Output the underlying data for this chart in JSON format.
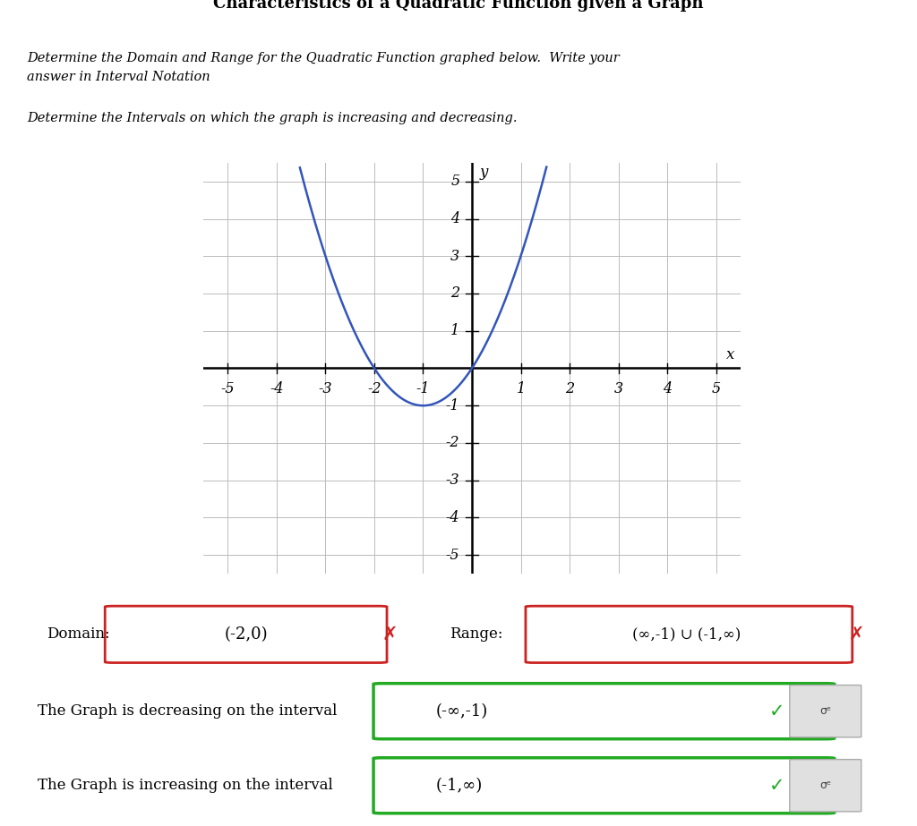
{
  "title": "Characteristics of a Quadratic Function given a Graph",
  "instructions_line1": "Determine the Domain and Range for the Quadratic Function graphed below.  Write your\nanswer in Interval Notation",
  "instructions_line3": "Determine the Intervals on which the graph is increasing and decreasing.",
  "parabola_color": "#3355bb",
  "grid_color": "#bbbbbb",
  "axis_color": "#000000",
  "domain_label": "Domain:",
  "domain_value": "(-2,0)",
  "range_label": "Range:",
  "range_value": "(∞,-1) ∪ (-1,∞)",
  "decreasing_text": "The Graph is decreasing on the interval",
  "decreasing_value": "(-∞,-1)",
  "increasing_text": "The Graph is increasing on the interval",
  "increasing_value": "(-1,∞)",
  "bg_color": "#ffffff",
  "border_color": "#666666",
  "correct_box_color": "#22aa22",
  "wrong_box_color": "#cc2222",
  "check_color": "#22aa22",
  "x_mark_color": "#cc2222"
}
